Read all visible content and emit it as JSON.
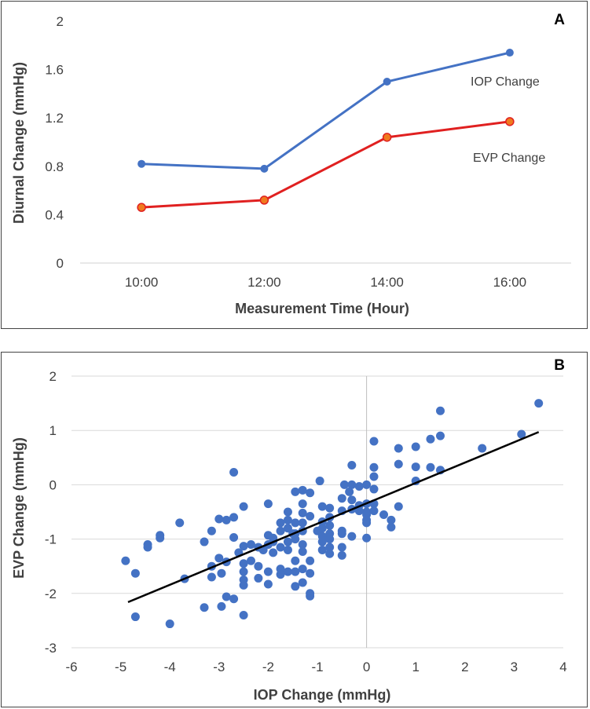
{
  "chart_data": [
    {
      "type": "line",
      "panel_label": "A",
      "title": "",
      "xlabel": "Measurement Time (Hour)",
      "ylabel": "Diurnal Change (mmHg)",
      "categories": [
        "10:00",
        "12:00",
        "14:00",
        "16:00"
      ],
      "ylim": [
        0,
        2
      ],
      "yticks": [
        "0",
        "0.4",
        "0.8",
        "1.2",
        "1.6",
        "2"
      ],
      "grid": false,
      "series": [
        {
          "name": "IOP Change",
          "color": "#4472c4",
          "values": [
            0.82,
            0.78,
            1.5,
            1.74
          ]
        },
        {
          "name": "EVP Change",
          "color": "#e02020",
          "values": [
            0.46,
            0.52,
            1.04,
            1.17
          ]
        }
      ]
    },
    {
      "type": "scatter",
      "panel_label": "B",
      "title": "",
      "xlabel": "IOP Change (mmHg)",
      "ylabel": "EVP Change (mmHg)",
      "xlim": [
        -6,
        4
      ],
      "ylim": [
        -3,
        2
      ],
      "xticks": [
        "-6",
        "-5",
        "-4",
        "-3",
        "-2",
        "-1",
        "0",
        "1",
        "2",
        "3",
        "4"
      ],
      "yticks": [
        "-3",
        "-2",
        "-1",
        "0",
        "1",
        "2"
      ],
      "grid": "horizontal",
      "point_color": "#4472c4",
      "trendline": {
        "color": "#000000",
        "x": [
          -4.85,
          3.5
        ],
        "y": [
          -2.16,
          0.97
        ]
      },
      "points": [
        [
          -4.9,
          -1.4
        ],
        [
          -4.7,
          -1.63
        ],
        [
          -4.7,
          -2.43
        ],
        [
          -4.45,
          -1.15
        ],
        [
          -4.45,
          -1.1
        ],
        [
          -4.2,
          -0.93
        ],
        [
          -4.2,
          -0.98
        ],
        [
          -4.0,
          -2.56
        ],
        [
          -3.8,
          -0.7
        ],
        [
          -3.7,
          -1.73
        ],
        [
          -3.3,
          -2.26
        ],
        [
          -3.3,
          -1.05
        ],
        [
          -3.15,
          -0.85
        ],
        [
          -3.15,
          -1.5
        ],
        [
          -3.15,
          -1.7
        ],
        [
          -3.0,
          -0.63
        ],
        [
          -3.0,
          -1.35
        ],
        [
          -2.95,
          -1.63
        ],
        [
          -2.95,
          -2.24
        ],
        [
          -2.85,
          -2.06
        ],
        [
          -2.85,
          -1.42
        ],
        [
          -2.85,
          -0.65
        ],
        [
          -2.7,
          -0.97
        ],
        [
          -2.7,
          -0.6
        ],
        [
          -2.7,
          0.23
        ],
        [
          -2.7,
          -2.1
        ],
        [
          -2.6,
          -1.25
        ],
        [
          -2.5,
          -1.13
        ],
        [
          -2.5,
          -1.45
        ],
        [
          -2.5,
          -1.6
        ],
        [
          -2.5,
          -1.75
        ],
        [
          -2.5,
          -1.85
        ],
        [
          -2.5,
          -2.4
        ],
        [
          -2.5,
          -0.4
        ],
        [
          -2.35,
          -1.1
        ],
        [
          -2.35,
          -1.4
        ],
        [
          -2.2,
          -1.15
        ],
        [
          -2.2,
          -1.5
        ],
        [
          -2.2,
          -1.72
        ],
        [
          -2.1,
          -1.2
        ],
        [
          -2.0,
          -0.35
        ],
        [
          -2.0,
          -0.93
        ],
        [
          -2.0,
          -1.1
        ],
        [
          -2.0,
          -1.6
        ],
        [
          -2.0,
          -1.83
        ],
        [
          -1.9,
          -0.98
        ],
        [
          -1.9,
          -1.25
        ],
        [
          -1.9,
          -1.05
        ],
        [
          -1.75,
          -0.7
        ],
        [
          -1.75,
          -0.85
        ],
        [
          -1.75,
          -1.15
        ],
        [
          -1.75,
          -1.55
        ],
        [
          -1.75,
          -1.65
        ],
        [
          -1.6,
          -0.5
        ],
        [
          -1.6,
          -0.65
        ],
        [
          -1.6,
          -0.8
        ],
        [
          -1.6,
          -1.05
        ],
        [
          -1.6,
          -1.2
        ],
        [
          -1.6,
          -1.6
        ],
        [
          -1.5,
          -0.9
        ],
        [
          -1.45,
          -0.13
        ],
        [
          -1.45,
          -0.7
        ],
        [
          -1.45,
          -0.9
        ],
        [
          -1.45,
          -1.0
        ],
        [
          -1.45,
          -1.4
        ],
        [
          -1.45,
          -1.6
        ],
        [
          -1.45,
          -1.87
        ],
        [
          -1.3,
          -0.1
        ],
        [
          -1.3,
          -0.35
        ],
        [
          -1.3,
          -0.52
        ],
        [
          -1.3,
          -0.7
        ],
        [
          -1.3,
          -0.85
        ],
        [
          -1.3,
          -1.1
        ],
        [
          -1.3,
          -1.23
        ],
        [
          -1.3,
          -1.55
        ],
        [
          -1.3,
          -1.8
        ],
        [
          -1.15,
          -0.15
        ],
        [
          -1.15,
          -0.58
        ],
        [
          -1.15,
          -1.4
        ],
        [
          -1.15,
          -1.63
        ],
        [
          -1.15,
          -2.0
        ],
        [
          -1.15,
          -2.05
        ],
        [
          -1.0,
          -0.85
        ],
        [
          -0.95,
          0.07
        ],
        [
          -0.9,
          -0.4
        ],
        [
          -0.9,
          -0.68
        ],
        [
          -0.9,
          -0.8
        ],
        [
          -0.9,
          -0.95
        ],
        [
          -0.9,
          -1.05
        ],
        [
          -0.9,
          -1.2
        ],
        [
          -0.75,
          -0.43
        ],
        [
          -0.75,
          -0.6
        ],
        [
          -0.75,
          -0.75
        ],
        [
          -0.75,
          -0.9
        ],
        [
          -0.75,
          -1.0
        ],
        [
          -0.75,
          -1.15
        ],
        [
          -0.75,
          -1.27
        ],
        [
          -0.5,
          -0.25
        ],
        [
          -0.5,
          -0.48
        ],
        [
          -0.5,
          -0.85
        ],
        [
          -0.5,
          -0.9
        ],
        [
          -0.5,
          -1.15
        ],
        [
          -0.5,
          -1.3
        ],
        [
          -0.45,
          0.0
        ],
        [
          -0.35,
          -0.13
        ],
        [
          -0.3,
          0.0
        ],
        [
          -0.3,
          0.36
        ],
        [
          -0.3,
          -0.28
        ],
        [
          -0.3,
          -0.45
        ],
        [
          -0.3,
          -0.95
        ],
        [
          -0.15,
          -0.03
        ],
        [
          -0.15,
          -0.48
        ],
        [
          -0.15,
          -0.38
        ],
        [
          0.0,
          -0.35
        ],
        [
          0.0,
          -0.5
        ],
        [
          0.0,
          -0.55
        ],
        [
          0.0,
          -0.65
        ],
        [
          0.0,
          -0.7
        ],
        [
          0.0,
          -0.98
        ],
        [
          0.0,
          0.0
        ],
        [
          0.15,
          0.8
        ],
        [
          0.15,
          0.32
        ],
        [
          0.15,
          0.15
        ],
        [
          0.15,
          -0.08
        ],
        [
          0.15,
          -0.35
        ],
        [
          0.15,
          -0.48
        ],
        [
          0.35,
          -0.55
        ],
        [
          0.5,
          -0.65
        ],
        [
          0.5,
          -0.78
        ],
        [
          0.65,
          0.67
        ],
        [
          0.65,
          0.38
        ],
        [
          0.65,
          -0.4
        ],
        [
          1.0,
          0.7
        ],
        [
          1.0,
          0.33
        ],
        [
          1.0,
          0.07
        ],
        [
          1.3,
          0.84
        ],
        [
          1.3,
          0.32
        ],
        [
          1.5,
          1.36
        ],
        [
          1.5,
          0.9
        ],
        [
          1.5,
          0.27
        ],
        [
          2.35,
          0.67
        ],
        [
          3.15,
          0.93
        ],
        [
          3.5,
          1.5
        ]
      ]
    }
  ]
}
